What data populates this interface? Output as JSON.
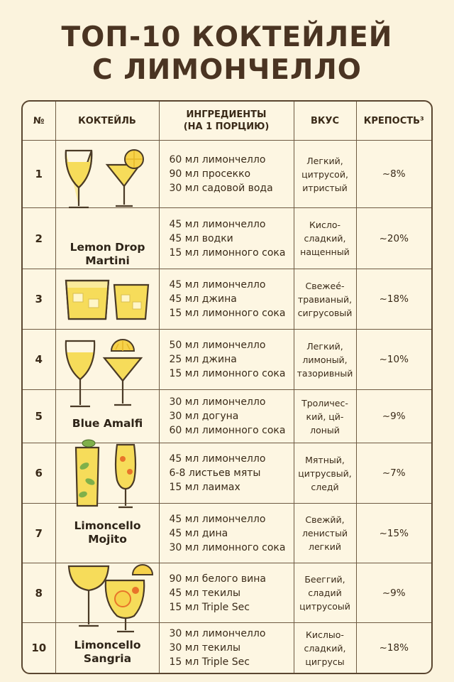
{
  "title": {
    "line1": "ТОП-10 КОКТЕЙЛЕЙ",
    "line2": "С ЛИМОНЧЕЛЛО"
  },
  "headers": {
    "num": "№",
    "cocktail": "КОКТЕЙЛЬ",
    "ingredients_line1": "ИНГРЕДИЕНТЫ",
    "ingredients_line2": "(НА 1 ПОРЦИЮ)",
    "taste": "ВКУС",
    "strength": "КРЕПОСТЬ³"
  },
  "rows": [
    {
      "num": "1",
      "name_line1": "",
      "name_line2": "",
      "ingredients": [
        "60 мл лимончелло",
        "90 мл просекко",
        "30 мл садовой вода"
      ],
      "taste": [
        "Легкий,",
        "цитрусой,",
        "итристый"
      ],
      "strength": "~8%"
    },
    {
      "num": "2",
      "name_line1": "Lemon Drop",
      "name_line2": "Martini",
      "ingredients": [
        "45 мл лимончелло",
        "45 мл водки",
        "15 мл лимонного сока"
      ],
      "taste": [
        "Кисло-",
        "сладкий,",
        "нащенный"
      ],
      "strength": "~20%"
    },
    {
      "num": "3",
      "name_line1": "",
      "name_line2": "",
      "ingredients": [
        "45 мл лимончелло",
        "45 мл джина",
        "15 мл лимонного сока"
      ],
      "taste": [
        "Свежеé-",
        "травианый,",
        "сигрусовый"
      ],
      "strength": "~18%"
    },
    {
      "num": "4",
      "name_line1": "",
      "name_line2": "",
      "ingredients": [
        "50 мл лимончелло",
        "25 мл джина",
        "15 мл лимонного сока"
      ],
      "taste": [
        "Легкий,",
        "лимоный,",
        "тазоривный"
      ],
      "strength": "~10%"
    },
    {
      "num": "5",
      "name_line1": "Blue Amalfi",
      "name_line2": "",
      "ingredients": [
        "30 мл лимончелло",
        "30 мл догуна",
        "60 мл лимонного сока"
      ],
      "taste": [
        "Троличес-",
        "кий, цй-",
        "лоный"
      ],
      "strength": "~9%"
    },
    {
      "num": "6",
      "name_line1": "",
      "name_line2": "",
      "ingredients": [
        "45 мл лимончелло",
        "6-8 листьев мяты",
        "15 мл лаимах"
      ],
      "taste": [
        "Мятный,",
        "цитрусвый,",
        "следй"
      ],
      "strength": "~7%"
    },
    {
      "num": "7",
      "name_line1": "Limoncello",
      "name_line2": "Mojito",
      "ingredients": [
        "45 мл лимончелло",
        "45 мл дина",
        "30 мл лимонного сока"
      ],
      "taste": [
        "Свежйй,",
        "ленистый",
        "легкий"
      ],
      "strength": "~15%"
    },
    {
      "num": "8",
      "name_line1": "",
      "name_line2": "",
      "ingredients": [
        "90 мл белого вина",
        "45 мл текилы",
        "15 мл Triple Sec"
      ],
      "taste": [
        "Бееггий,",
        "сладий",
        "цитрусоый"
      ],
      "strength": "~9%"
    },
    {
      "num": "10",
      "name_line1": "Limoncello",
      "name_line2": "Sangria",
      "ingredients": [
        "30 мл лимончелло",
        "30 мл текилы",
        "15 мл Triple Sec"
      ],
      "taste": [
        "Кислыо-",
        "сладкий,",
        "цигрусы"
      ],
      "strength": "~18%"
    }
  ],
  "illustrations": {
    "r1": "wine-glass-and-martini-glass-icon",
    "r3": "two-tumbler-glasses-icon",
    "r4": "wine-glass-and-martini-glass-icon",
    "r6": "highball-with-mint-and-flute-icon",
    "r8": "coupe-and-sangria-glass-icon"
  },
  "colors": {
    "background": "#fbf3dd",
    "lemon": "#f6dc5a",
    "glass_fill": "#fbeb9c",
    "border": "#5a4630",
    "mint": "#7fb04a"
  }
}
